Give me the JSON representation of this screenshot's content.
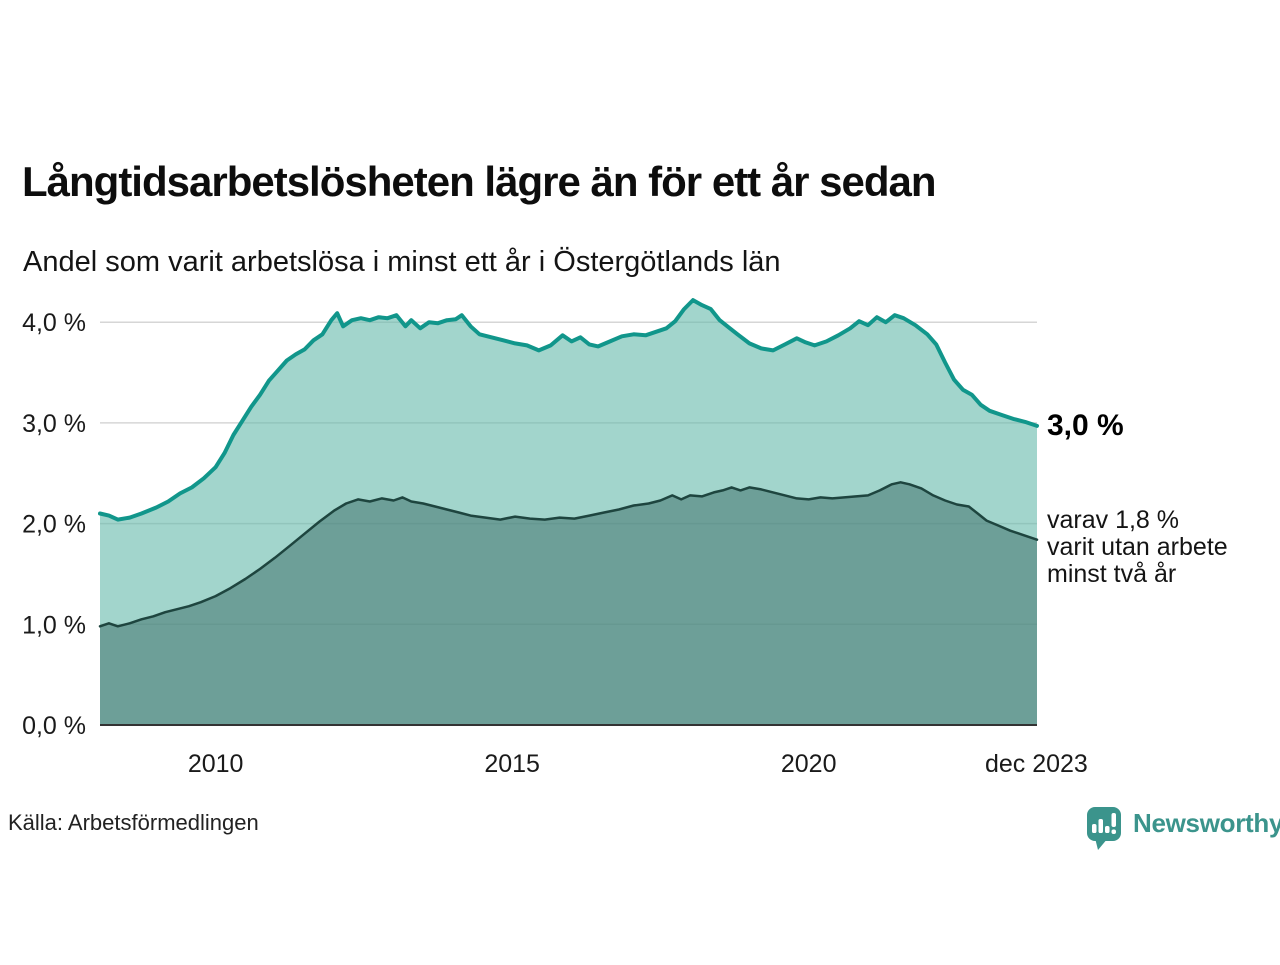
{
  "title": "Långtidsarbetslösheten lägre än för ett år sedan",
  "subtitle": "Andel som varit arbetslösa i minst ett år i Östergötlands län",
  "source": "Källa: Arbetsförmedlingen",
  "branding": {
    "name": "Newsworthy",
    "color": "#3b948c",
    "icon": "bar-chart-speech-bubble-icon"
  },
  "annotations": {
    "total_end_label": "3,0 %",
    "sub_end_label_lines": [
      "varav 1,8 %",
      "varit utan arbete",
      "minst två år"
    ]
  },
  "colors": {
    "line_total": "#11968b",
    "fill_total": "rgba(100,185,170,0.6)",
    "line_two_years": "#1e453f",
    "fill_two_years": "rgba(66,115,110,0.55)",
    "gridline": "#d6d6d6",
    "baseline": "#333333",
    "tick_text": "#1a1a1a"
  },
  "chart_data": {
    "type": "area",
    "title": "Långtidsarbetslösheten lägre än för ett år sedan",
    "subtitle": "Andel som varit arbetslösa i minst ett år i Östergötlands län",
    "x_unit": "year (monthly observations)",
    "y_unit": "percent of workforce",
    "xlim": [
      2008.05,
      2023.85
    ],
    "ylim": [
      0,
      4.32
    ],
    "grid": true,
    "legend_position": "right-edge annotations",
    "xticks": [
      {
        "value": 2010,
        "label": "2010"
      },
      {
        "value": 2015,
        "label": "2015"
      },
      {
        "value": 2020,
        "label": "2020"
      },
      {
        "value": 2023.84,
        "label": "dec 2023"
      }
    ],
    "yticks": [
      {
        "value": 0,
        "label": "0,0 %"
      },
      {
        "value": 1,
        "label": "1,0 %"
      },
      {
        "value": 2,
        "label": "2,0 %"
      },
      {
        "value": 3,
        "label": "3,0 %"
      },
      {
        "value": 4,
        "label": "4,0 %"
      }
    ],
    "series": [
      {
        "name": "Arbetslösa minst ett år",
        "end_value_label": "3,0 %",
        "end_value": 3.0,
        "points": [
          [
            2008.05,
            2.1
          ],
          [
            2008.2,
            2.08
          ],
          [
            2008.35,
            2.04
          ],
          [
            2008.55,
            2.06
          ],
          [
            2008.75,
            2.1
          ],
          [
            2009.0,
            2.16
          ],
          [
            2009.2,
            2.22
          ],
          [
            2009.4,
            2.3
          ],
          [
            2009.6,
            2.36
          ],
          [
            2009.8,
            2.45
          ],
          [
            2010.0,
            2.56
          ],
          [
            2010.15,
            2.7
          ],
          [
            2010.3,
            2.88
          ],
          [
            2010.45,
            3.02
          ],
          [
            2010.6,
            3.16
          ],
          [
            2010.75,
            3.28
          ],
          [
            2010.9,
            3.42
          ],
          [
            2011.05,
            3.52
          ],
          [
            2011.2,
            3.62
          ],
          [
            2011.35,
            3.68
          ],
          [
            2011.5,
            3.73
          ],
          [
            2011.65,
            3.82
          ],
          [
            2011.8,
            3.88
          ],
          [
            2011.95,
            4.02
          ],
          [
            2012.05,
            4.09
          ],
          [
            2012.15,
            3.96
          ],
          [
            2012.3,
            4.02
          ],
          [
            2012.45,
            4.04
          ],
          [
            2012.6,
            4.02
          ],
          [
            2012.75,
            4.05
          ],
          [
            2012.9,
            4.04
          ],
          [
            2013.05,
            4.07
          ],
          [
            2013.2,
            3.96
          ],
          [
            2013.3,
            4.02
          ],
          [
            2013.45,
            3.94
          ],
          [
            2013.6,
            4.0
          ],
          [
            2013.75,
            3.99
          ],
          [
            2013.9,
            4.02
          ],
          [
            2014.05,
            4.03
          ],
          [
            2014.15,
            4.07
          ],
          [
            2014.3,
            3.96
          ],
          [
            2014.45,
            3.88
          ],
          [
            2014.65,
            3.85
          ],
          [
            2014.85,
            3.82
          ],
          [
            2015.05,
            3.79
          ],
          [
            2015.25,
            3.77
          ],
          [
            2015.45,
            3.72
          ],
          [
            2015.65,
            3.77
          ],
          [
            2015.85,
            3.87
          ],
          [
            2016.0,
            3.81
          ],
          [
            2016.15,
            3.85
          ],
          [
            2016.3,
            3.78
          ],
          [
            2016.45,
            3.76
          ],
          [
            2016.65,
            3.81
          ],
          [
            2016.85,
            3.86
          ],
          [
            2017.05,
            3.88
          ],
          [
            2017.25,
            3.87
          ],
          [
            2017.45,
            3.91
          ],
          [
            2017.6,
            3.94
          ],
          [
            2017.75,
            4.01
          ],
          [
            2017.9,
            4.13
          ],
          [
            2018.05,
            4.22
          ],
          [
            2018.2,
            4.17
          ],
          [
            2018.35,
            4.13
          ],
          [
            2018.5,
            4.02
          ],
          [
            2018.65,
            3.95
          ],
          [
            2018.8,
            3.88
          ],
          [
            2019.0,
            3.79
          ],
          [
            2019.2,
            3.74
          ],
          [
            2019.4,
            3.72
          ],
          [
            2019.6,
            3.78
          ],
          [
            2019.8,
            3.84
          ],
          [
            2019.95,
            3.8
          ],
          [
            2020.1,
            3.77
          ],
          [
            2020.3,
            3.81
          ],
          [
            2020.5,
            3.87
          ],
          [
            2020.7,
            3.94
          ],
          [
            2020.85,
            4.01
          ],
          [
            2021.0,
            3.97
          ],
          [
            2021.15,
            4.05
          ],
          [
            2021.3,
            4.0
          ],
          [
            2021.45,
            4.07
          ],
          [
            2021.6,
            4.04
          ],
          [
            2021.8,
            3.97
          ],
          [
            2022.0,
            3.88
          ],
          [
            2022.15,
            3.78
          ],
          [
            2022.3,
            3.6
          ],
          [
            2022.45,
            3.43
          ],
          [
            2022.6,
            3.33
          ],
          [
            2022.75,
            3.28
          ],
          [
            2022.9,
            3.18
          ],
          [
            2023.05,
            3.12
          ],
          [
            2023.25,
            3.08
          ],
          [
            2023.45,
            3.04
          ],
          [
            2023.65,
            3.01
          ],
          [
            2023.85,
            2.97
          ]
        ]
      },
      {
        "name": "varav utan arbete minst två år",
        "end_value_label": "1,8 %",
        "end_value": 1.8,
        "points": [
          [
            2008.05,
            0.98
          ],
          [
            2008.2,
            1.01
          ],
          [
            2008.35,
            0.98
          ],
          [
            2008.55,
            1.01
          ],
          [
            2008.75,
            1.05
          ],
          [
            2008.95,
            1.08
          ],
          [
            2009.15,
            1.12
          ],
          [
            2009.35,
            1.15
          ],
          [
            2009.55,
            1.18
          ],
          [
            2009.75,
            1.22
          ],
          [
            2010.0,
            1.28
          ],
          [
            2010.25,
            1.36
          ],
          [
            2010.5,
            1.45
          ],
          [
            2010.75,
            1.55
          ],
          [
            2011.0,
            1.66
          ],
          [
            2011.25,
            1.78
          ],
          [
            2011.5,
            1.9
          ],
          [
            2011.75,
            2.02
          ],
          [
            2012.0,
            2.13
          ],
          [
            2012.2,
            2.2
          ],
          [
            2012.4,
            2.24
          ],
          [
            2012.6,
            2.22
          ],
          [
            2012.8,
            2.25
          ],
          [
            2013.0,
            2.23
          ],
          [
            2013.15,
            2.26
          ],
          [
            2013.3,
            2.22
          ],
          [
            2013.5,
            2.2
          ],
          [
            2013.7,
            2.17
          ],
          [
            2013.9,
            2.14
          ],
          [
            2014.1,
            2.11
          ],
          [
            2014.3,
            2.08
          ],
          [
            2014.55,
            2.06
          ],
          [
            2014.8,
            2.04
          ],
          [
            2015.05,
            2.07
          ],
          [
            2015.3,
            2.05
          ],
          [
            2015.55,
            2.04
          ],
          [
            2015.8,
            2.06
          ],
          [
            2016.05,
            2.05
          ],
          [
            2016.3,
            2.08
          ],
          [
            2016.55,
            2.11
          ],
          [
            2016.8,
            2.14
          ],
          [
            2017.05,
            2.18
          ],
          [
            2017.3,
            2.2
          ],
          [
            2017.5,
            2.23
          ],
          [
            2017.7,
            2.28
          ],
          [
            2017.85,
            2.24
          ],
          [
            2018.0,
            2.28
          ],
          [
            2018.2,
            2.27
          ],
          [
            2018.4,
            2.31
          ],
          [
            2018.55,
            2.33
          ],
          [
            2018.7,
            2.36
          ],
          [
            2018.85,
            2.33
          ],
          [
            2019.0,
            2.36
          ],
          [
            2019.2,
            2.34
          ],
          [
            2019.4,
            2.31
          ],
          [
            2019.6,
            2.28
          ],
          [
            2019.8,
            2.25
          ],
          [
            2020.0,
            2.24
          ],
          [
            2020.2,
            2.26
          ],
          [
            2020.4,
            2.25
          ],
          [
            2020.6,
            2.26
          ],
          [
            2020.8,
            2.27
          ],
          [
            2021.0,
            2.28
          ],
          [
            2021.2,
            2.33
          ],
          [
            2021.4,
            2.39
          ],
          [
            2021.55,
            2.41
          ],
          [
            2021.7,
            2.39
          ],
          [
            2021.9,
            2.35
          ],
          [
            2022.1,
            2.28
          ],
          [
            2022.3,
            2.23
          ],
          [
            2022.5,
            2.19
          ],
          [
            2022.7,
            2.17
          ],
          [
            2022.85,
            2.1
          ],
          [
            2023.0,
            2.03
          ],
          [
            2023.2,
            1.98
          ],
          [
            2023.4,
            1.93
          ],
          [
            2023.6,
            1.89
          ],
          [
            2023.85,
            1.84
          ]
        ]
      }
    ]
  }
}
